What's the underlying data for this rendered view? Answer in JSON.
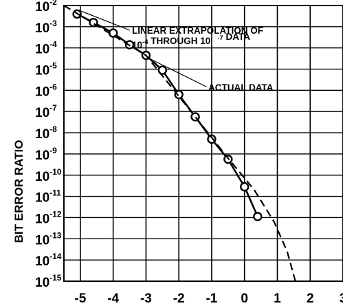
{
  "chart_data": {
    "type": "line",
    "title": "",
    "xlabel": "",
    "ylabel": "BIT ERROR RATIO",
    "yscale": "log",
    "grid": true,
    "xlim": [
      -5.5,
      3
    ],
    "ylim_exponents": [
      -15,
      -2
    ],
    "x_ticks": [
      -5,
      -4,
      -3,
      -2,
      -1,
      0,
      1,
      2,
      3
    ],
    "x_tick_labels": [
      "-5",
      "-4",
      "-3",
      "-2",
      "-1",
      "0",
      "1",
      "2",
      "3"
    ],
    "y_tick_base": "10",
    "y_tick_exponents": [
      "-2",
      "-3",
      "-4",
      "-5",
      "-6",
      "-7",
      "-8",
      "-9",
      "-10",
      "-11",
      "-12",
      "-13",
      "-14",
      "-15"
    ],
    "series": [
      {
        "name": "ACTUAL DATA",
        "style": "solid-with-circle-markers",
        "color": "#000000",
        "points": [
          {
            "x": -5.1,
            "y_exp": -2.4
          },
          {
            "x": -4.6,
            "y_exp": -2.8
          },
          {
            "x": -4.0,
            "y_exp": -3.3
          },
          {
            "x": -3.5,
            "y_exp": -3.85
          },
          {
            "x": -3.0,
            "y_exp": -4.35
          },
          {
            "x": -2.5,
            "y_exp": -5.05
          },
          {
            "x": -2.0,
            "y_exp": -6.2
          },
          {
            "x": -1.5,
            "y_exp": -7.25
          },
          {
            "x": -1.0,
            "y_exp": -8.3
          },
          {
            "x": -0.5,
            "y_exp": -9.25
          },
          {
            "x": 0.0,
            "y_exp": -10.55
          },
          {
            "x": 0.4,
            "y_exp": -11.95
          }
        ]
      },
      {
        "name": "LINEAR EXTRAPOLATION OF 10-4 THROUGH 10-7 DATA",
        "style": "dashed",
        "color": "#000000",
        "points": [
          {
            "x": -5.5,
            "y_exp": -2.0
          },
          {
            "x": -3.0,
            "y_exp": -4.35
          },
          {
            "x": -1.5,
            "y_exp": -7.25
          },
          {
            "x": -0.5,
            "y_exp": -9.2
          },
          {
            "x": 0.3,
            "y_exp": -10.7
          },
          {
            "x": 0.9,
            "y_exp": -12.2
          },
          {
            "x": 1.3,
            "y_exp": -13.6
          },
          {
            "x": 1.55,
            "y_exp": -15.0
          }
        ]
      }
    ],
    "annotations": [
      {
        "id": "extrapolation",
        "lines": [
          [
            {
              "t": "LINEAR EXTRAPOLATION OF"
            }
          ],
          [
            {
              "t": "10"
            },
            {
              "t": "-4",
              "sup": true
            },
            {
              "t": " THROUGH 10"
            },
            {
              "t": "-7",
              "sup": true,
              "gap": true
            },
            {
              "t": " DATA"
            }
          ]
        ],
        "pointer_to": {
          "x": -5.0,
          "y_exp": -2.25
        }
      },
      {
        "id": "actual",
        "lines": [
          [
            {
              "t": "ACTUAL DATA"
            }
          ]
        ],
        "pointer_to": {
          "x": -2.9,
          "y_exp": -4.5
        }
      }
    ]
  }
}
